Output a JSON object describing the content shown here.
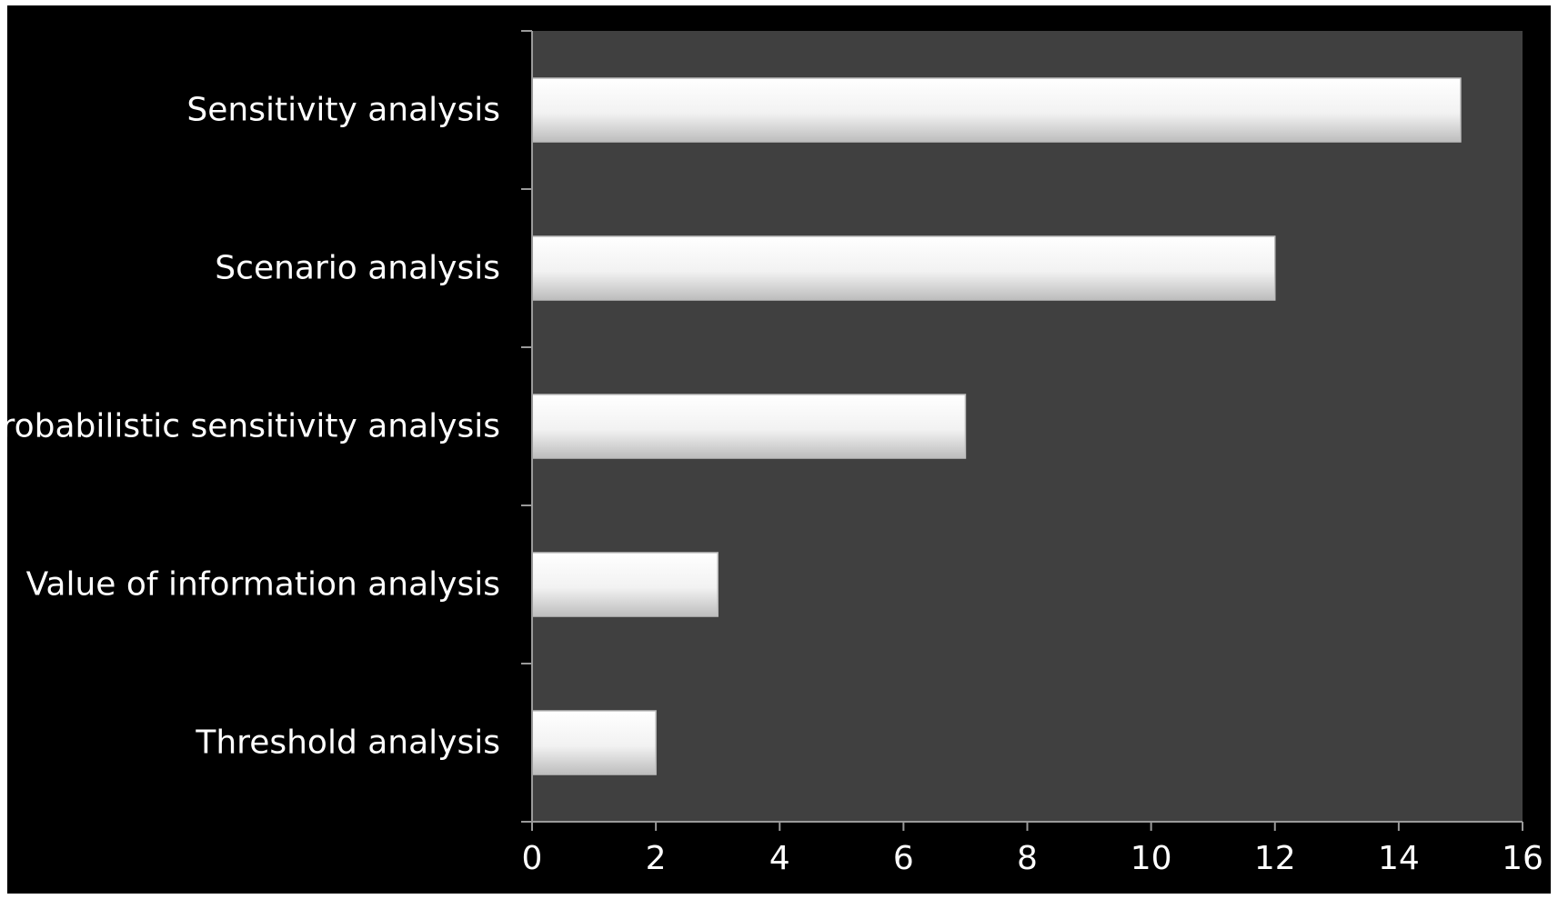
{
  "chart_data": {
    "type": "bar",
    "orientation": "horizontal",
    "categories": [
      "Sensitivity analysis",
      "Scenario analysis",
      "Probabilistic sensitivity analysis",
      "Value of information analysis",
      "Threshold analysis"
    ],
    "values": [
      15,
      12,
      7,
      3,
      2
    ],
    "xlim": [
      0,
      16
    ],
    "x_ticks": [
      0,
      2,
      4,
      6,
      8,
      10,
      12,
      14,
      16
    ],
    "title": "",
    "xlabel": "",
    "ylabel": "",
    "legend": "none",
    "grid": false
  },
  "colors": {
    "frame_background": "#000000",
    "plot_background": "#404040",
    "axis_line": "#9a9a9a",
    "text": "#ffffff",
    "bar_light": "#ffffff",
    "bar_dark": "#bdbdbd"
  }
}
